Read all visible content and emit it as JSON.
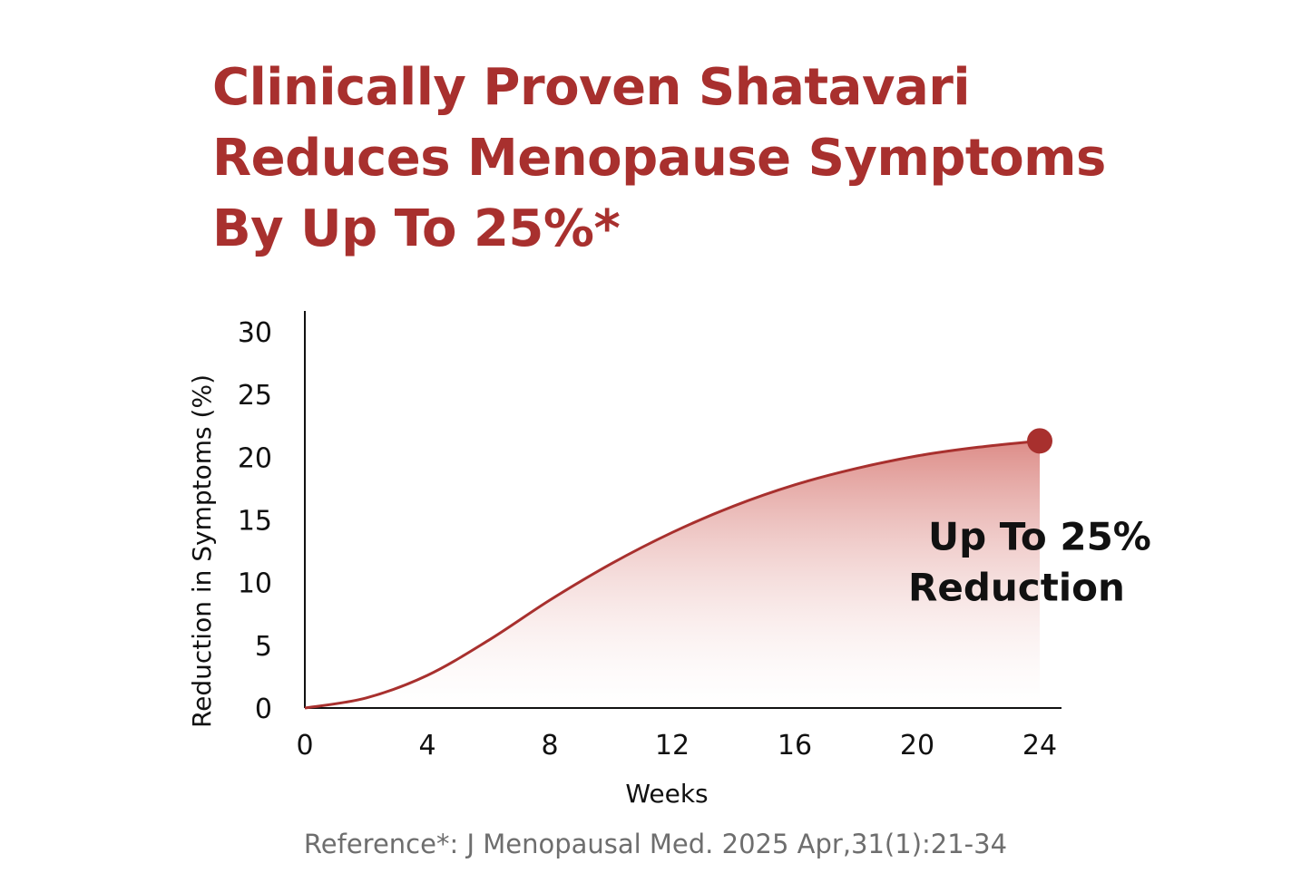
{
  "headline": {
    "lines": [
      "Clinically Proven Shatavari",
      "Reduces Menopause Symptoms",
      "By Up To 25%*"
    ]
  },
  "chart_data": {
    "type": "area",
    "title": "",
    "xlabel": "Weeks",
    "ylabel": "Reduction in Symptoms (%)",
    "xlim": [
      0,
      24
    ],
    "ylim": [
      0,
      30
    ],
    "x_ticks": [
      0,
      4,
      8,
      12,
      16,
      20,
      24
    ],
    "y_ticks": [
      0,
      5,
      10,
      15,
      20,
      25,
      30
    ],
    "grid": false,
    "legend": "none",
    "series": [
      {
        "x": [
          0,
          2,
          4,
          6,
          8,
          10,
          12,
          14,
          16,
          18,
          20,
          22,
          24
        ],
        "values": [
          0,
          0.8,
          2.6,
          5.4,
          8.6,
          11.5,
          14.0,
          16.1,
          17.8,
          19.1,
          20.1,
          20.8,
          21.3
        ],
        "color": "#a8302e"
      }
    ],
    "endpoint": {
      "x": 24,
      "y": 21.3
    },
    "annotation": {
      "lines": [
        "Up To 25%",
        "Reduction"
      ],
      "x": 20,
      "y": 13.5
    }
  },
  "reference": "Reference*: J Menopausal Med. 2025 Apr,31(1):21-34",
  "colors": {
    "accent": "#a8302e",
    "fill_top": "#d9807b",
    "text": "#111111",
    "muted": "#6e6e6e"
  }
}
